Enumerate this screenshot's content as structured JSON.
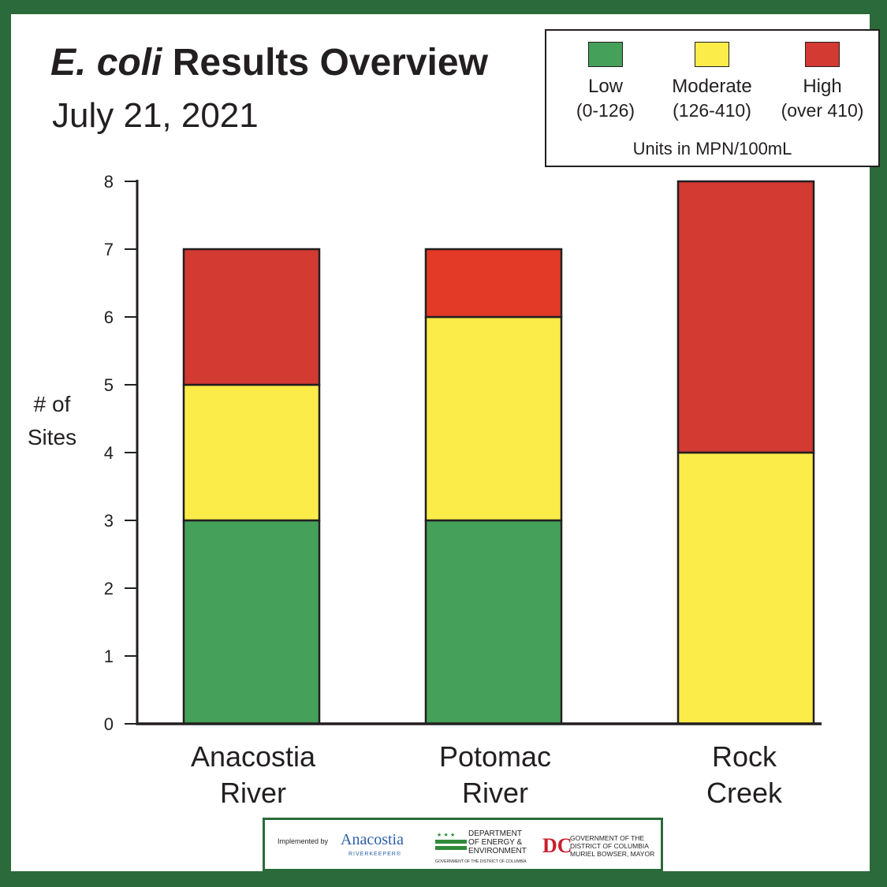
{
  "title": {
    "italic": "E. coli",
    "rest": " Results Overview"
  },
  "subtitle": "July 21, 2021",
  "legend": {
    "items": [
      {
        "name": "Low",
        "range": "(0-126)",
        "color": "#45a05a"
      },
      {
        "name": "Moderate",
        "range": "(126-410)",
        "color": "#fbec4a"
      },
      {
        "name": "High",
        "range": "(over 410)",
        "color": "#d33a32"
      }
    ],
    "units": "Units in MPN/100mL"
  },
  "ylabel": {
    "line1": "# of",
    "line2": "Sites"
  },
  "colors": {
    "low": "#45a05a",
    "moderate": "#fbec4a",
    "high": "#d33a32",
    "high_alt": "#e23a26",
    "border": "#2b6a3a"
  },
  "chart_data": {
    "type": "bar",
    "stacked": true,
    "title": "E. coli Results Overview",
    "subtitle": "July 21, 2021",
    "xlabel": "",
    "ylabel": "# of Sites",
    "ylim": [
      0,
      8
    ],
    "yticks": [
      0,
      1,
      2,
      3,
      4,
      5,
      6,
      7,
      8
    ],
    "categories": [
      "Anacostia River",
      "Potomac River",
      "Rock Creek"
    ],
    "category_lines": [
      [
        "Anacostia",
        "River"
      ],
      [
        "Potomac",
        "River"
      ],
      [
        "Rock",
        "Creek"
      ]
    ],
    "series": [
      {
        "name": "Low",
        "key": "low",
        "values": [
          3,
          3,
          0
        ]
      },
      {
        "name": "Moderate",
        "key": "moderate",
        "values": [
          2,
          3,
          4
        ]
      },
      {
        "name": "High",
        "key": "high",
        "values": [
          2,
          1,
          4
        ]
      }
    ],
    "legend_position": "top-right",
    "grid": false
  },
  "footer": {
    "implemented_by": "Implemented by",
    "anacostia": "Anacostia",
    "riverkeeper": "RIVERKEEPER®",
    "doee_line1": "DEPARTMENT",
    "doee_line2": "OF ENERGY &",
    "doee_line3": "ENVIRONMENT",
    "doee_sub": "GOVERNMENT OF THE DISTRICT OF COLUMBIA",
    "dc": "DC",
    "gov_line1": "GOVERNMENT OF THE",
    "gov_line2": "DISTRICT OF COLUMBIA",
    "gov_line3": "MURIEL BOWSER, MAYOR"
  }
}
